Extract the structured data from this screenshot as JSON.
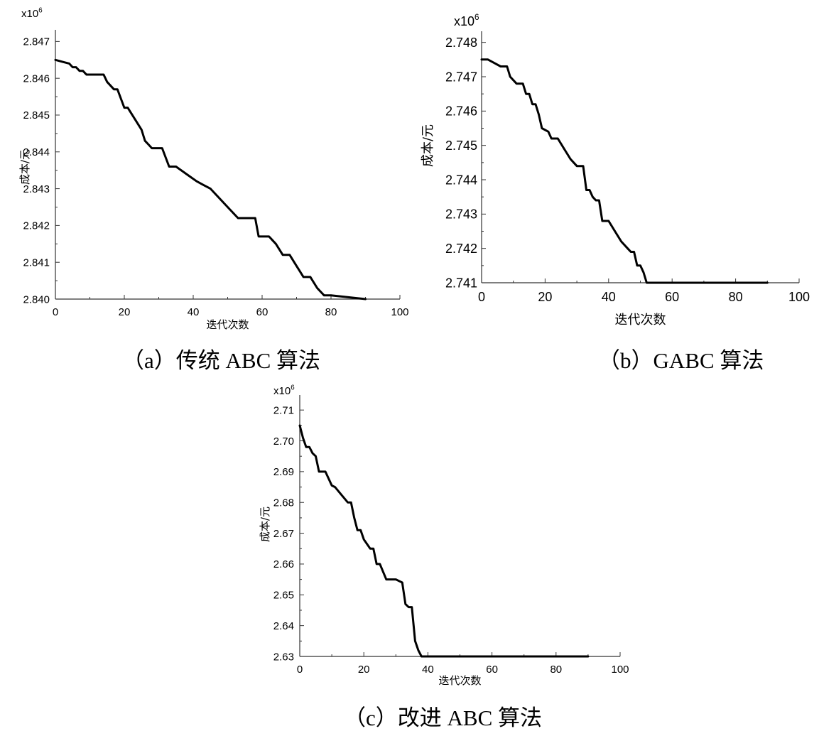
{
  "captions": {
    "a": "（a）传统 ABC 算法",
    "b": "（b）GABC 算法",
    "c": "（c）改进 ABC 算法"
  },
  "chart_data": [
    {
      "type": "line",
      "panel": "a",
      "xlabel": "迭代次数",
      "ylabel": "成本/元",
      "multiplier": "x10^6",
      "xlim": [
        0,
        100
      ],
      "ylim": [
        2.84,
        2.8472
      ],
      "xticks": [
        "0",
        "20",
        "40",
        "60",
        "80",
        "100"
      ],
      "yticks": [
        "2.840",
        "2.841",
        "2.842",
        "2.843",
        "2.844",
        "2.845",
        "2.846",
        "2.847"
      ],
      "grid": false,
      "line_color": "#000000",
      "series": [
        {
          "x": [
            0,
            2,
            4,
            5,
            6,
            7,
            8,
            9,
            10,
            12,
            14,
            15,
            17,
            18,
            20,
            21,
            23,
            25,
            26,
            27,
            28,
            30,
            31,
            33,
            35,
            38,
            41,
            43,
            45,
            47,
            50,
            53,
            56,
            58,
            59,
            61,
            62,
            64,
            66,
            68,
            70,
            72,
            74,
            76,
            78,
            80,
            85,
            90
          ],
          "y": [
            2.8465,
            2.84645,
            2.8464,
            2.8463,
            2.8463,
            2.8462,
            2.8462,
            2.8461,
            2.8461,
            2.8461,
            2.8461,
            2.8459,
            2.8457,
            2.8457,
            2.8452,
            2.8452,
            2.8449,
            2.8446,
            2.8443,
            2.8442,
            2.8441,
            2.8441,
            2.8441,
            2.8436,
            2.8436,
            2.8434,
            2.8432,
            2.8431,
            2.843,
            2.8428,
            2.8425,
            2.8422,
            2.8422,
            2.8422,
            2.8417,
            2.8417,
            2.8417,
            2.8415,
            2.8412,
            2.8412,
            2.8409,
            2.8406,
            2.8406,
            2.8403,
            2.8401,
            2.8401,
            2.84005,
            2.84
          ]
        }
      ]
    },
    {
      "type": "line",
      "panel": "b",
      "xlabel": "迭代次数",
      "ylabel": "成本/元",
      "multiplier": "x10^6",
      "xlim": [
        0,
        100
      ],
      "ylim": [
        2.741,
        2.7482
      ],
      "xticks": [
        "0",
        "20",
        "40",
        "60",
        "80",
        "100"
      ],
      "yticks": [
        "2.741",
        "2.742",
        "2.743",
        "2.744",
        "2.745",
        "2.746",
        "2.747",
        "2.748"
      ],
      "grid": false,
      "line_color": "#000000",
      "series": [
        {
          "x": [
            0,
            2,
            4,
            6,
            8,
            9,
            11,
            13,
            14,
            15,
            16,
            17,
            18,
            19,
            21,
            22,
            24,
            26,
            28,
            30,
            32,
            33,
            34,
            35,
            36,
            37,
            38,
            39,
            40,
            42,
            44,
            46,
            47,
            48,
            49,
            50,
            51,
            52,
            60,
            80,
            90
          ],
          "y": [
            2.7475,
            2.7475,
            2.7474,
            2.7473,
            2.7473,
            2.747,
            2.7468,
            2.7468,
            2.7465,
            2.7465,
            2.7462,
            2.7462,
            2.7459,
            2.7455,
            2.7454,
            2.7452,
            2.7452,
            2.7449,
            2.7446,
            2.7444,
            2.7444,
            2.7437,
            2.7437,
            2.7435,
            2.7434,
            2.7434,
            2.7428,
            2.7428,
            2.7428,
            2.7425,
            2.7422,
            2.742,
            2.7419,
            2.7419,
            2.7415,
            2.7415,
            2.7413,
            2.741,
            2.741,
            2.741,
            2.741
          ]
        }
      ]
    },
    {
      "type": "line",
      "panel": "c",
      "xlabel": "迭代次数",
      "ylabel": "成本/元",
      "multiplier": "x10^6",
      "xlim": [
        0,
        100
      ],
      "ylim": [
        2.63,
        2.7135
      ],
      "xticks": [
        "0",
        "20",
        "40",
        "60",
        "80",
        "100"
      ],
      "yticks": [
        "2.63",
        "2.64",
        "2.65",
        "2.66",
        "2.67",
        "2.68",
        "2.69",
        "2.70",
        "2.71"
      ],
      "grid": false,
      "line_color": "#000000",
      "series": [
        {
          "x": [
            0,
            1,
            2,
            3,
            4,
            5,
            6,
            8,
            10,
            11,
            13,
            15,
            16,
            17,
            18,
            19,
            20,
            22,
            23,
            24,
            25,
            27,
            29,
            30,
            31,
            32,
            33,
            34,
            35,
            36,
            37,
            38,
            40,
            60,
            90
          ],
          "y": [
            2.705,
            2.701,
            2.698,
            2.698,
            2.696,
            2.695,
            2.69,
            2.69,
            2.6855,
            2.685,
            2.6825,
            2.68,
            2.68,
            2.675,
            2.671,
            2.671,
            2.668,
            2.665,
            2.665,
            2.66,
            2.66,
            2.655,
            2.655,
            2.655,
            2.6545,
            2.654,
            2.647,
            2.646,
            2.646,
            2.635,
            2.632,
            2.63,
            2.63,
            2.63,
            2.63
          ]
        }
      ]
    }
  ]
}
